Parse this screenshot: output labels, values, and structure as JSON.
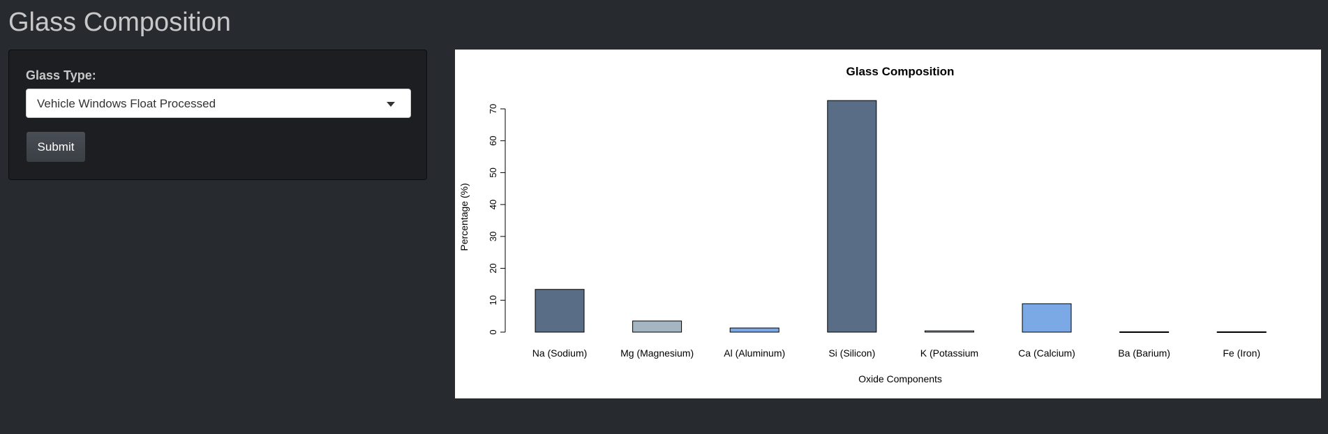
{
  "app": {
    "title": "Glass Composition"
  },
  "sidebar": {
    "glass_type_label": "Glass Type:",
    "glass_type_selected": "Vehicle Windows Float Processed",
    "submit_label": "Submit"
  },
  "colors": {
    "background": "#272b30",
    "panel": "#1c1e22",
    "bar_dark": "#596e86",
    "bar_light": "#a4b6c2",
    "bar_blue": "#7ba9e6"
  },
  "chart_data": {
    "type": "bar",
    "title": "Glass Composition",
    "xlabel": "Oxide Components",
    "ylabel": "Percentage (%)",
    "ylim": [
      0,
      70
    ],
    "yticks": [
      0,
      10,
      20,
      30,
      40,
      50,
      60,
      70
    ],
    "grid": false,
    "categories": [
      "Na (Sodium)",
      "Mg (Magnesium)",
      "Al (Aluminum)",
      "Si (Silicon)",
      "K (Potassium",
      "Ca (Calcium)",
      "Ba (Barium)",
      "Fe (Iron)"
    ],
    "values": [
      13.4,
      3.5,
      1.3,
      72.6,
      0.4,
      8.9,
      0.0,
      0.0
    ],
    "bar_colors": [
      "#596e86",
      "#a4b6c2",
      "#7ba9e6",
      "#596e86",
      "#a4b6c2",
      "#7ba9e6",
      "#596e86",
      "#a4b6c2"
    ]
  }
}
